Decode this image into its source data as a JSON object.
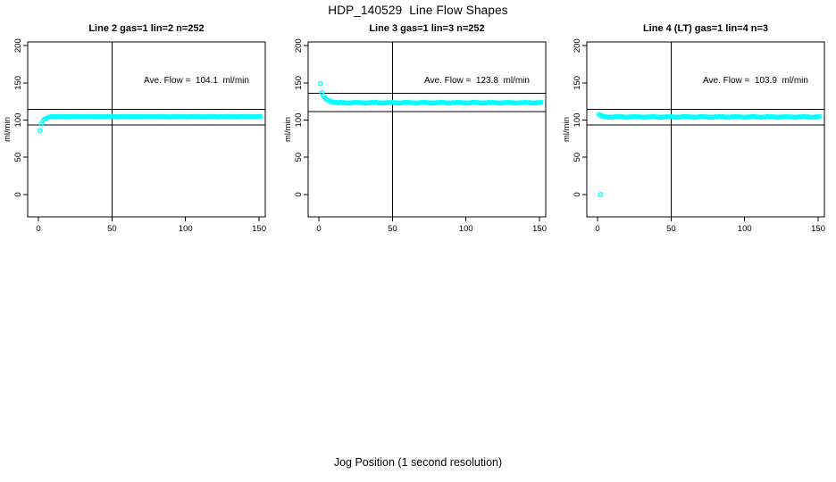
{
  "page_title": "HDP_140529  Line Flow Shapes",
  "bottom_xlabel": "Jog Position (1 second resolution)",
  "colors": {
    "marker": "#00FFFF",
    "axis": "#000000",
    "background": "#FFFFFF",
    "text": "#000000"
  },
  "chart_data": [
    {
      "type": "scatter",
      "title": "Line 2 gas=1 lin=2 n=252",
      "ylabel": "ml/min",
      "annotation": "Ave. Flow =  104.1  ml/min",
      "ave_flow_ml_min": 104.1,
      "n": 252,
      "xlim": [
        -7.3,
        154.2
      ],
      "ylim": [
        -30.2,
        205
      ],
      "xticks": [
        0,
        50,
        100,
        150
      ],
      "yticks": [
        0,
        50,
        100,
        150,
        200
      ],
      "vline_x": 50,
      "hlines": [
        114.5,
        93.7
      ],
      "outlier_points": [
        [
          1,
          86
        ]
      ],
      "transient_points": [
        [
          2,
          95
        ],
        [
          3,
          99
        ],
        [
          4,
          101
        ],
        [
          5,
          102
        ],
        [
          6,
          103
        ],
        [
          7,
          104
        ]
      ],
      "steady": {
        "x_start": 8,
        "x_end": 151,
        "y": 104.6,
        "step": 1,
        "jitter": 0.35
      }
    },
    {
      "type": "scatter",
      "title": "Line 3 gas=1 lin=3 n=252",
      "ylabel": "ml/min",
      "annotation": "Ave. Flow =  123.8  ml/min",
      "ave_flow_ml_min": 123.8,
      "n": 252,
      "xlim": [
        -7.3,
        154.2
      ],
      "ylim": [
        -30.2,
        205
      ],
      "xticks": [
        0,
        50,
        100,
        150
      ],
      "yticks": [
        0,
        50,
        100,
        150,
        200
      ],
      "vline_x": 50,
      "hlines": [
        136.2,
        111.4
      ],
      "outlier_points": [
        [
          1,
          149
        ]
      ],
      "transient_points": [
        [
          2,
          137
        ],
        [
          3,
          133
        ],
        [
          4,
          130
        ],
        [
          5,
          128
        ],
        [
          6,
          127
        ],
        [
          7,
          126
        ],
        [
          8,
          125
        ],
        [
          9,
          124.5
        ],
        [
          10,
          124
        ]
      ],
      "steady": {
        "x_start": 11,
        "x_end": 151,
        "y": 123.3,
        "step": 1,
        "jitter": 0.55
      }
    },
    {
      "type": "scatter",
      "title": "Line 4 (LT) gas=1 lin=4 n=3",
      "ylabel": "ml/min",
      "annotation": "Ave. Flow =  103.9  ml/min",
      "ave_flow_ml_min": 103.9,
      "n": 3,
      "xlim": [
        -7.3,
        154.2
      ],
      "ylim": [
        -30.2,
        205
      ],
      "xticks": [
        0,
        50,
        100,
        150
      ],
      "yticks": [
        0,
        50,
        100,
        150,
        200
      ],
      "vline_x": 50,
      "hlines": [
        114.3,
        93.5
      ],
      "outlier_points": [
        [
          2,
          0
        ]
      ],
      "transient_points": [
        [
          1,
          107.5
        ],
        [
          2,
          106.5
        ],
        [
          3,
          105.5
        ],
        [
          4,
          105
        ]
      ],
      "steady": {
        "x_start": 5,
        "x_end": 151,
        "y": 104.2,
        "step": 1,
        "jitter": 0.6
      }
    }
  ]
}
